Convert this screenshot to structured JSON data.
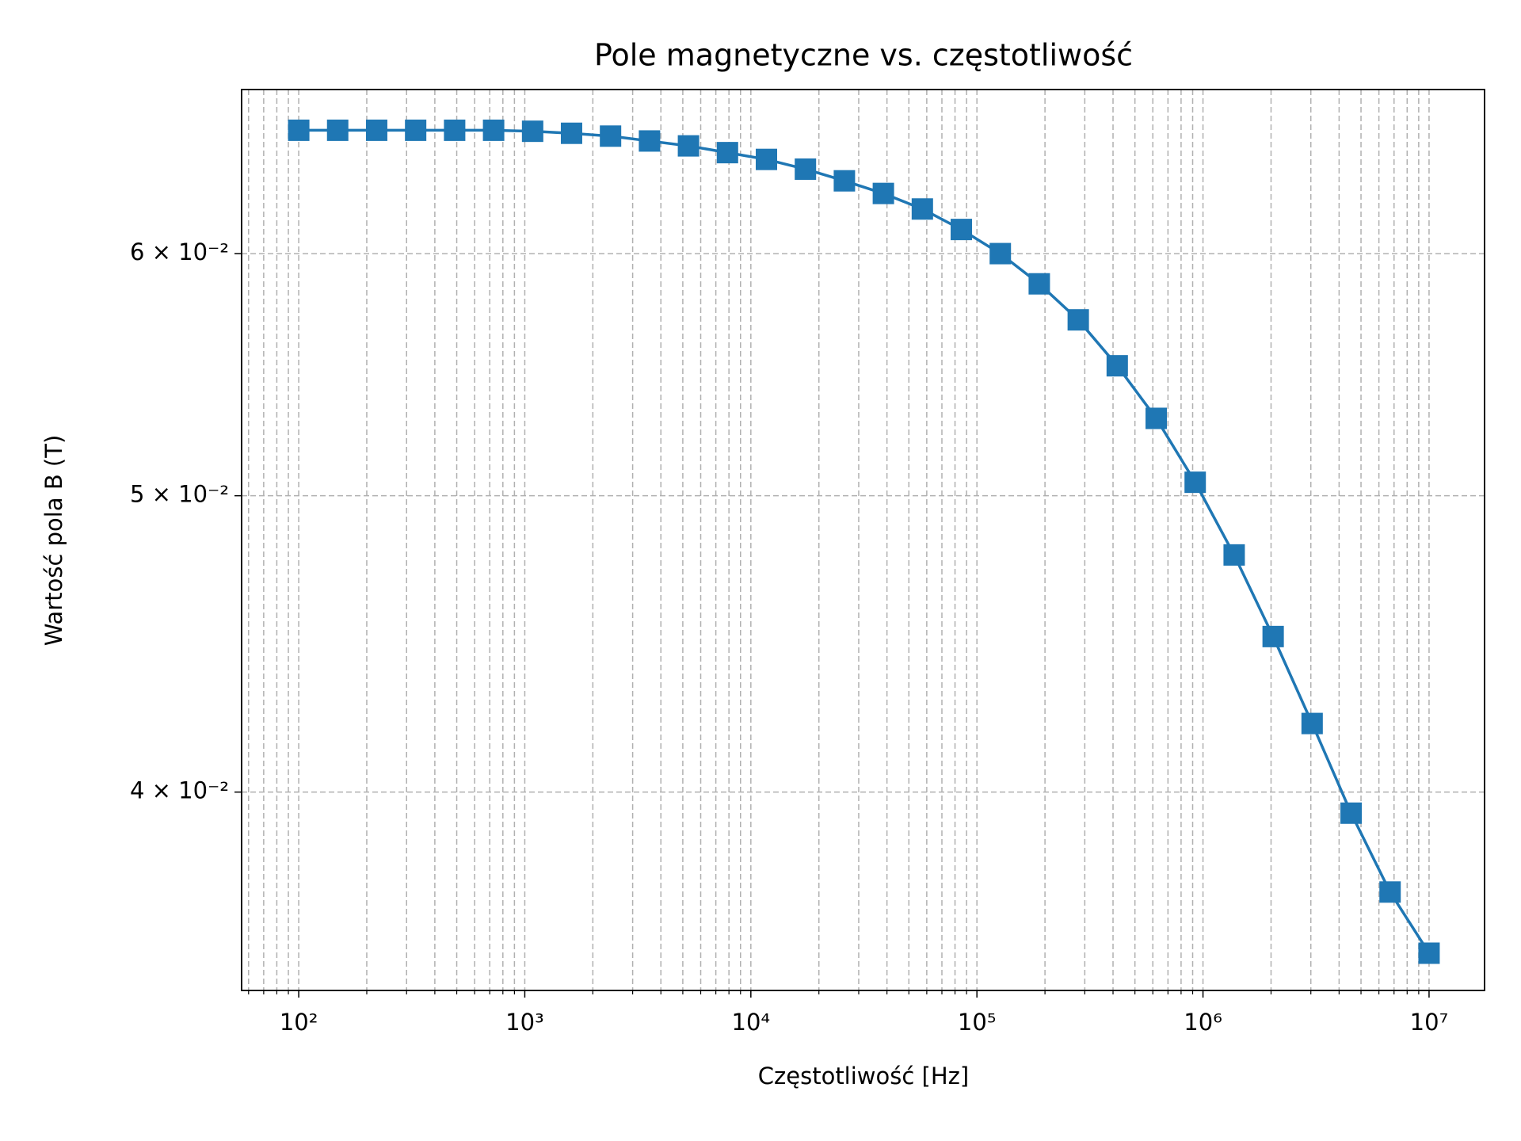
{
  "chart_data": {
    "type": "line",
    "title": "Pole magnetyczne vs. częstotliwość",
    "xlabel": "Częstotliwość [Hz]",
    "ylabel": "Wartość pola B (T)",
    "xscale": "log",
    "yscale": "log",
    "grid": true,
    "marker": "square",
    "x": [
      100,
      148.7,
      221.2,
      329.0,
      489.4,
      727.9,
      1083,
      1610,
      2395,
      3562,
      5298,
      7880,
      11721,
      17433,
      25929,
      38566,
      57362,
      85317,
      126896,
      188739,
      280722,
      417532,
      621017,
      923671,
      1373824,
      2043360,
      3039195,
      4520354,
      6723358,
      10000000
    ],
    "series": [
      {
        "name": "B",
        "color": "#1f77b4",
        "values": [
          0.06584,
          0.06584,
          0.06584,
          0.06584,
          0.06584,
          0.06584,
          0.06579,
          0.06569,
          0.06555,
          0.06531,
          0.06507,
          0.06474,
          0.06441,
          0.06394,
          0.06338,
          0.06278,
          0.06205,
          0.0611,
          0.06,
          0.05865,
          0.05708,
          0.05514,
          0.053,
          0.05051,
          0.04782,
          0.04497,
          0.04212,
          0.03937,
          0.0371,
          0.03543
        ]
      }
    ],
    "xlim": [
      55.9,
      17600000
    ],
    "ylim": [
      0.03445,
      0.06789
    ],
    "xticks": [
      {
        "value": 100,
        "label": "10²"
      },
      {
        "value": 1000,
        "label": "10³"
      },
      {
        "value": 10000,
        "label": "10⁴"
      },
      {
        "value": 100000,
        "label": "10⁵"
      },
      {
        "value": 1000000,
        "label": "10⁶"
      },
      {
        "value": 10000000,
        "label": "10⁷"
      }
    ],
    "xminorticks": [
      60,
      70,
      80,
      90,
      200,
      300,
      400,
      500,
      600,
      700,
      800,
      900,
      2000,
      3000,
      4000,
      5000,
      6000,
      7000,
      8000,
      9000,
      20000,
      30000,
      40000,
      50000,
      60000,
      70000,
      80000,
      90000,
      200000,
      300000,
      400000,
      500000,
      600000,
      700000,
      800000,
      900000,
      2000000,
      3000000,
      4000000,
      5000000,
      6000000,
      7000000,
      8000000,
      9000000
    ],
    "yticks": [
      {
        "value": 0.04,
        "label": "4 × 10⁻²"
      },
      {
        "value": 0.05,
        "label": "5 × 10⁻²"
      },
      {
        "value": 0.06,
        "label": "6 × 10⁻²"
      }
    ]
  }
}
